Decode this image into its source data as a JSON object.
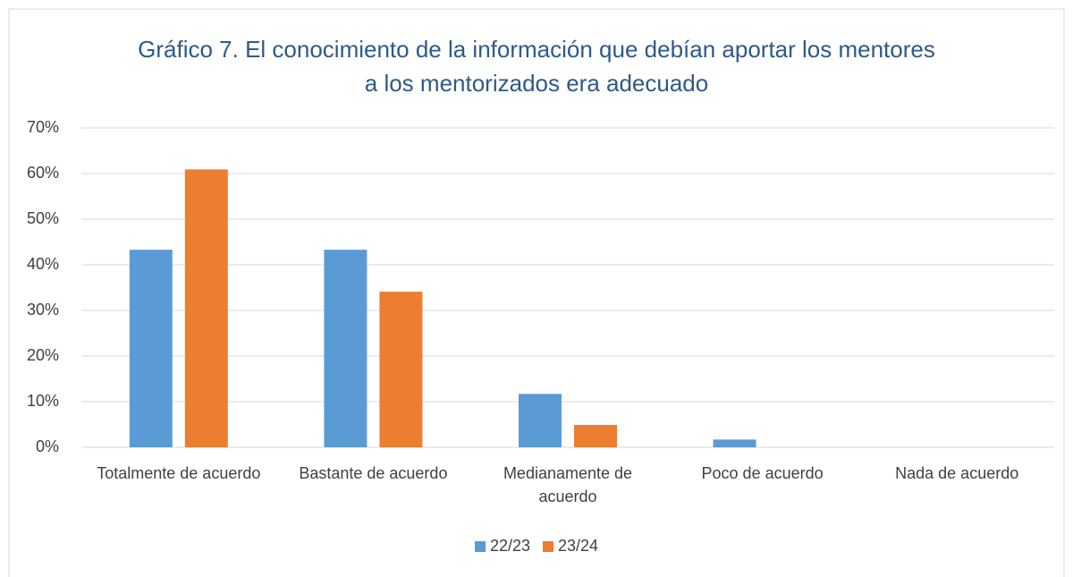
{
  "chart_data": {
    "type": "bar",
    "title": "Gráfico 7. El conocimiento de la información que debían aportar los mentores a los mentorizados era adecuado",
    "categories": [
      "Totalmente de acuerdo",
      "Bastante de acuerdo",
      "Medianamente de acuerdo",
      "Poco de acuerdo",
      "Nada de acuerdo"
    ],
    "series": [
      {
        "name": "22/23",
        "color": "#5b9bd5",
        "values": [
          43.3,
          43.3,
          11.7,
          1.7,
          0
        ]
      },
      {
        "name": "23/24",
        "color": "#ed7d31",
        "values": [
          60.9,
          34.1,
          4.9,
          0,
          0
        ]
      }
    ],
    "ylim": [
      0,
      70
    ],
    "yticks": [
      {
        "value": 0,
        "label": "0%"
      },
      {
        "value": 10,
        "label": "10%"
      },
      {
        "value": 20,
        "label": "20%"
      },
      {
        "value": 30,
        "label": "30%"
      },
      {
        "value": 40,
        "label": "40%"
      },
      {
        "value": 50,
        "label": "50%"
      },
      {
        "value": 60,
        "label": "60%"
      },
      {
        "value": 70,
        "label": "70%"
      }
    ],
    "grid": true,
    "legend": "bottom"
  }
}
